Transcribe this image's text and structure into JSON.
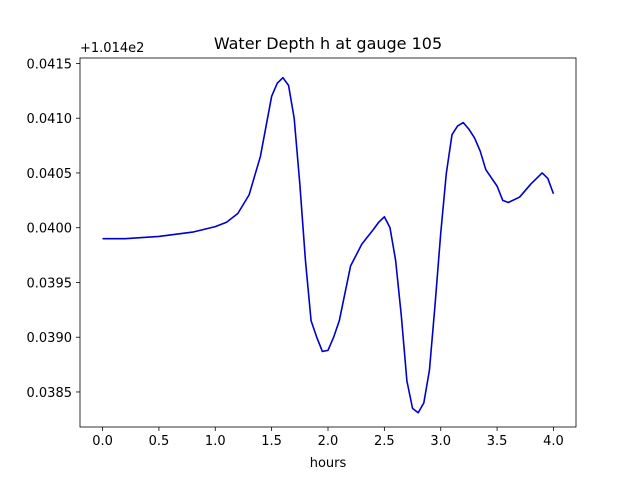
{
  "chart_data": {
    "type": "line",
    "title": "Water Depth h at gauge 105",
    "xlabel": "hours",
    "ylabel": "",
    "offset_text": "+1.014e2",
    "xlim": [
      -0.2,
      4.2
    ],
    "ylim": [
      0.03818,
      0.04155
    ],
    "xticks": [
      0.0,
      0.5,
      1.0,
      1.5,
      2.0,
      2.5,
      3.0,
      3.5,
      4.0
    ],
    "xtick_labels": [
      "0.0",
      "0.5",
      "1.0",
      "1.5",
      "2.0",
      "2.5",
      "3.0",
      "3.5",
      "4.0"
    ],
    "yticks": [
      0.0385,
      0.039,
      0.0395,
      0.04,
      0.0405,
      0.041,
      0.0415
    ],
    "ytick_labels": [
      "0.0385",
      "0.0390",
      "0.0395",
      "0.0400",
      "0.0405",
      "0.0410",
      "0.0415"
    ],
    "grid": false,
    "series": [
      {
        "color": "#0000cc",
        "x": [
          0.0,
          0.2,
          0.5,
          0.8,
          1.0,
          1.1,
          1.2,
          1.3,
          1.4,
          1.5,
          1.55,
          1.6,
          1.65,
          1.7,
          1.75,
          1.8,
          1.85,
          1.9,
          1.95,
          2.0,
          2.05,
          2.1,
          2.2,
          2.3,
          2.4,
          2.45,
          2.5,
          2.55,
          2.6,
          2.65,
          2.7,
          2.75,
          2.8,
          2.85,
          2.9,
          2.95,
          3.0,
          3.05,
          3.1,
          3.15,
          3.2,
          3.25,
          3.3,
          3.35,
          3.4,
          3.5,
          3.55,
          3.6,
          3.7,
          3.8,
          3.9,
          3.95,
          4.0
        ],
        "y": [
          0.0399,
          0.0399,
          0.03992,
          0.03996,
          0.04001,
          0.04005,
          0.04013,
          0.0403,
          0.04065,
          0.0412,
          0.04132,
          0.04137,
          0.0413,
          0.041,
          0.0404,
          0.0397,
          0.03915,
          0.039,
          0.03887,
          0.03888,
          0.039,
          0.03915,
          0.03965,
          0.03985,
          0.03998,
          0.04005,
          0.0401,
          0.04,
          0.0397,
          0.0392,
          0.0386,
          0.03835,
          0.03831,
          0.0384,
          0.0387,
          0.0393,
          0.03995,
          0.0405,
          0.04085,
          0.04093,
          0.04096,
          0.0409,
          0.04082,
          0.0407,
          0.04053,
          0.04038,
          0.04025,
          0.04023,
          0.04028,
          0.0404,
          0.0405,
          0.04045,
          0.04031
        ]
      }
    ]
  }
}
